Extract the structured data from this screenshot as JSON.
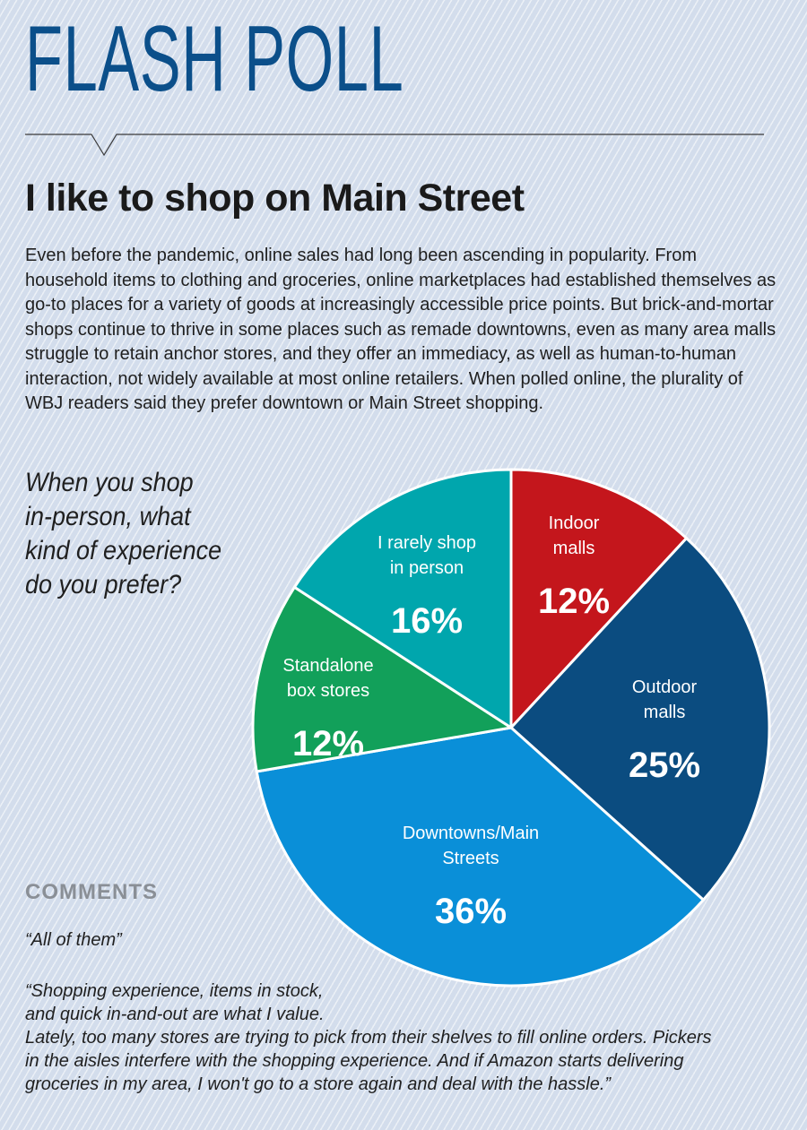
{
  "header": {
    "section_title": "FLASH POLL",
    "headline": "I like to shop on Main Street",
    "intro": "Even before the pandemic, online sales had long been ascending in popularity. From household items to clothing and groceries, online marketplaces had established themselves as go-to places for a variety of goods at increasingly accessible price points. But brick-and-mortar shops continue to thrive in some places such as remade downtowns, even as many area malls struggle to retain anchor stores, and they offer an immediacy, as well as human-to-human interaction, not widely available at most online retailers. When polled online, the plurality of WBJ readers said they prefer downtown or Main Street shopping."
  },
  "chart_data": {
    "type": "pie",
    "title": "When you shop in-person, what kind of experience do you prefer?",
    "title_lines": [
      "When you shop",
      "in-person, what",
      "kind of experience",
      "do you prefer?"
    ],
    "slices": [
      {
        "label_lines": [
          "Indoor",
          "malls"
        ],
        "label": "Indoor malls",
        "value": 12,
        "display": "12%",
        "color": "#c4161c"
      },
      {
        "label_lines": [
          "Outdoor",
          "malls"
        ],
        "label": "Outdoor malls",
        "value": 25,
        "display": "25%",
        "color": "#0b4c80"
      },
      {
        "label_lines": [
          "Downtowns/Main",
          "Streets"
        ],
        "label": "Downtowns/Main Streets",
        "value": 36,
        "display": "36%",
        "color": "#0a8fd8"
      },
      {
        "label_lines": [
          "Standalone",
          "box stores"
        ],
        "label": "Standalone box stores",
        "value": 12,
        "display": "12%",
        "color": "#12a05a"
      },
      {
        "label_lines": [
          "I rarely shop",
          "in person"
        ],
        "label": "I rarely shop in person",
        "value": 16,
        "display": "16%",
        "color": "#00a6ad"
      }
    ]
  },
  "comments": {
    "heading": "COMMENTS",
    "items": [
      "“All of them”",
      "“Shopping experience, items in stock,",
      "and quick in-and-out are what I value.",
      "Lately, too many stores are trying to pick from their shelves to fill online orders. Pickers",
      "in the aisles interfere with the shopping experience. And if Amazon starts delivering",
      "groceries in my area, I won't go to a store again and deal with the hassle.”"
    ]
  }
}
